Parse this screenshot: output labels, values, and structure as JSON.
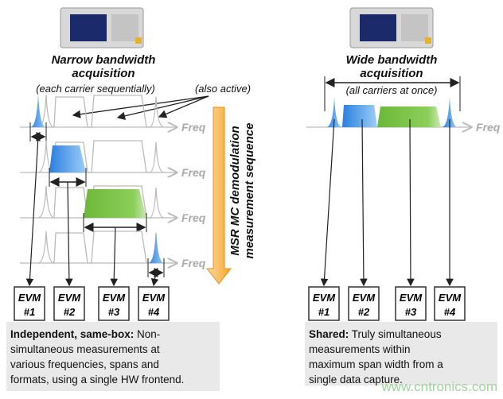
{
  "left": {
    "title_line1": "Narrow bandwidth",
    "title_line2": "acquisition",
    "subtitle": "(each carrier sequentially)",
    "also_active": "(also active)",
    "freq_label": "Freq",
    "sequence_line1": "MSR MC demodulation",
    "sequence_line2": "measurement sequence",
    "evm": [
      {
        "l1": "EVM",
        "l2": "#1"
      },
      {
        "l1": "EVM",
        "l2": "#2"
      },
      {
        "l1": "EVM",
        "l2": "#3"
      },
      {
        "l1": "EVM",
        "l2": "#4"
      }
    ],
    "desc_bold": "Independent, same-box:",
    "desc": [
      "Non-",
      "simultaneous measurements at",
      "various frequencies, spans and",
      "formats,  using a single HW frontend."
    ]
  },
  "right": {
    "title_line1": "Wide bandwidth",
    "title_line2": "acquisition",
    "subtitle": "(all carriers at once)",
    "freq_label": "Freq",
    "evm": [
      {
        "l1": "EVM",
        "l2": "#1"
      },
      {
        "l1": "EVM",
        "l2": "#2"
      },
      {
        "l1": "EVM",
        "l2": "#3"
      },
      {
        "l1": "EVM",
        "l2": "#4"
      }
    ],
    "desc_bold": "Shared:",
    "desc": [
      "Truly simultaneous",
      "measurements within",
      "maximum span width from a",
      "single data capture."
    ]
  },
  "watermark": "www.cntronics.com",
  "colors": {
    "blue": "#3a8fe0",
    "green": "#7cc24a",
    "orange": "#f6a623",
    "gray_trace": "#bbbbbb"
  }
}
